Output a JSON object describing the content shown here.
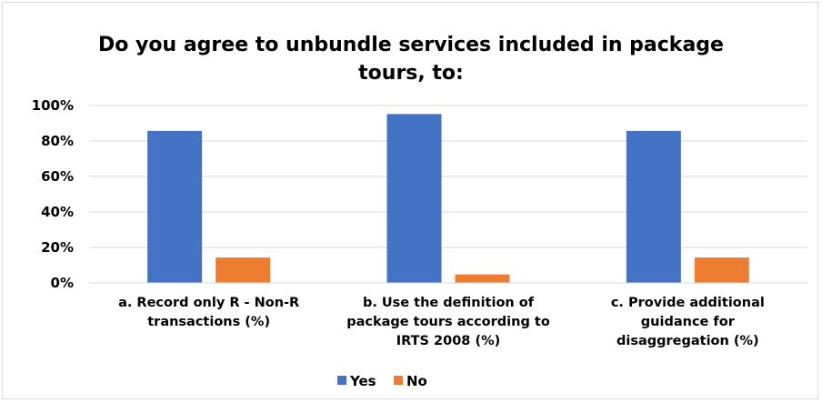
{
  "chart_data": {
    "type": "bar",
    "title": "Do you agree to unbundle services included in package tours, to:",
    "title_lines": [
      "Do you agree to unbundle services included in package",
      "tours, to:"
    ],
    "categories": [
      "a. Record only R - Non-R transactions (%)",
      "b. Use the definition of package tours according to IRTS 2008 (%)",
      "c. Provide additional guidance for disaggregation  (%)"
    ],
    "category_lines": [
      [
        "a. Record only R - Non-R",
        "transactions (%)"
      ],
      [
        "b. Use the definition of",
        "package tours according to",
        "IRTS 2008 (%)"
      ],
      [
        "c. Provide additional",
        "guidance for",
        "disaggregation  (%)"
      ]
    ],
    "series": [
      {
        "name": "Yes",
        "color": "#4472c4",
        "values": [
          85.7,
          95.2,
          85.7
        ]
      },
      {
        "name": "No",
        "color": "#ed7d31",
        "values": [
          14.3,
          4.8,
          14.3
        ]
      }
    ],
    "ylim": [
      0,
      100
    ],
    "yticks": [
      0,
      20,
      40,
      60,
      80,
      100
    ],
    "ytick_labels": [
      "0%",
      "20%",
      "40%",
      "60%",
      "80%",
      "100%"
    ],
    "xlabel": "",
    "ylabel": "",
    "grid": true,
    "gridline_color": "#d9d9d9",
    "legend_position": "bottom"
  }
}
